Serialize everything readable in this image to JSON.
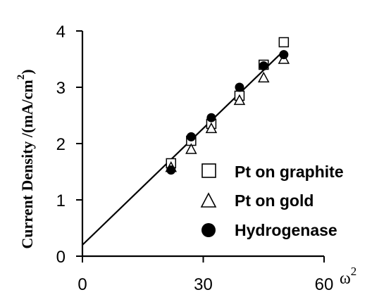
{
  "chart_data": {
    "type": "scatter",
    "xlabel": "ω",
    "xlabel_superscript": "2",
    "ylabel": "Current Density /(mA/cm",
    "ylabel_superscript": "2",
    "ylabel_close": ")",
    "xlim": [
      0,
      60
    ],
    "ylim": [
      0,
      4
    ],
    "xticks": [
      "0",
      "30",
      "60"
    ],
    "xtick_values": [
      0,
      30,
      60
    ],
    "yticks": [
      "0",
      "1",
      "2",
      "3",
      "4"
    ],
    "ytick_values": [
      0,
      1,
      2,
      3,
      4
    ],
    "grid": false,
    "legend_position": "bottom-right",
    "series": [
      {
        "name": "Pt on graphite",
        "marker": "open-square",
        "x": [
          22,
          27,
          32,
          39,
          45,
          50
        ],
        "y": [
          1.65,
          2.05,
          2.35,
          2.85,
          3.4,
          3.8
        ]
      },
      {
        "name": "Pt on gold",
        "marker": "open-triangle",
        "x": [
          22,
          27,
          32,
          39,
          45,
          50
        ],
        "y": [
          1.58,
          1.9,
          2.27,
          2.77,
          3.17,
          3.5
        ]
      },
      {
        "name": "Hydrogenase",
        "marker": "filled-circle",
        "x": [
          22,
          27,
          32,
          39,
          45,
          50
        ],
        "y": [
          1.53,
          2.12,
          2.46,
          3.0,
          3.38,
          3.58
        ]
      }
    ],
    "fit_line": {
      "x": [
        0,
        50
      ],
      "y": [
        0.2,
        3.65
      ]
    }
  }
}
